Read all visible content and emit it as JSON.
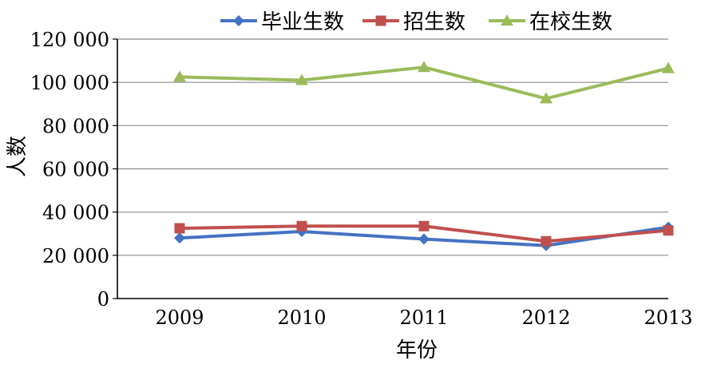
{
  "chart_data": {
    "type": "line",
    "title": "",
    "xlabel": "年份",
    "ylabel": "人数",
    "ylim": [
      0,
      120000
    ],
    "yticks": [
      0,
      20000,
      40000,
      60000,
      80000,
      100000,
      120000
    ],
    "ytick_labels": [
      "0",
      "20 000",
      "40 000",
      "60 000",
      "80 000",
      "100 000",
      "120 000"
    ],
    "categories": [
      "2009",
      "2010",
      "2011",
      "2012",
      "2013"
    ],
    "grid": true,
    "legend_position": "top",
    "series": [
      {
        "name": "毕业生数",
        "color": "#4472C4",
        "marker": "diamond",
        "values": [
          28000,
          31000,
          27500,
          24500,
          33000
        ]
      },
      {
        "name": "招生数",
        "color": "#C0504D",
        "marker": "square",
        "values": [
          32500,
          33500,
          33500,
          26500,
          31500
        ]
      },
      {
        "name": "在校生数",
        "color": "#9BBB59",
        "marker": "triangle",
        "values": [
          102500,
          101000,
          107000,
          92500,
          106500
        ]
      }
    ]
  }
}
